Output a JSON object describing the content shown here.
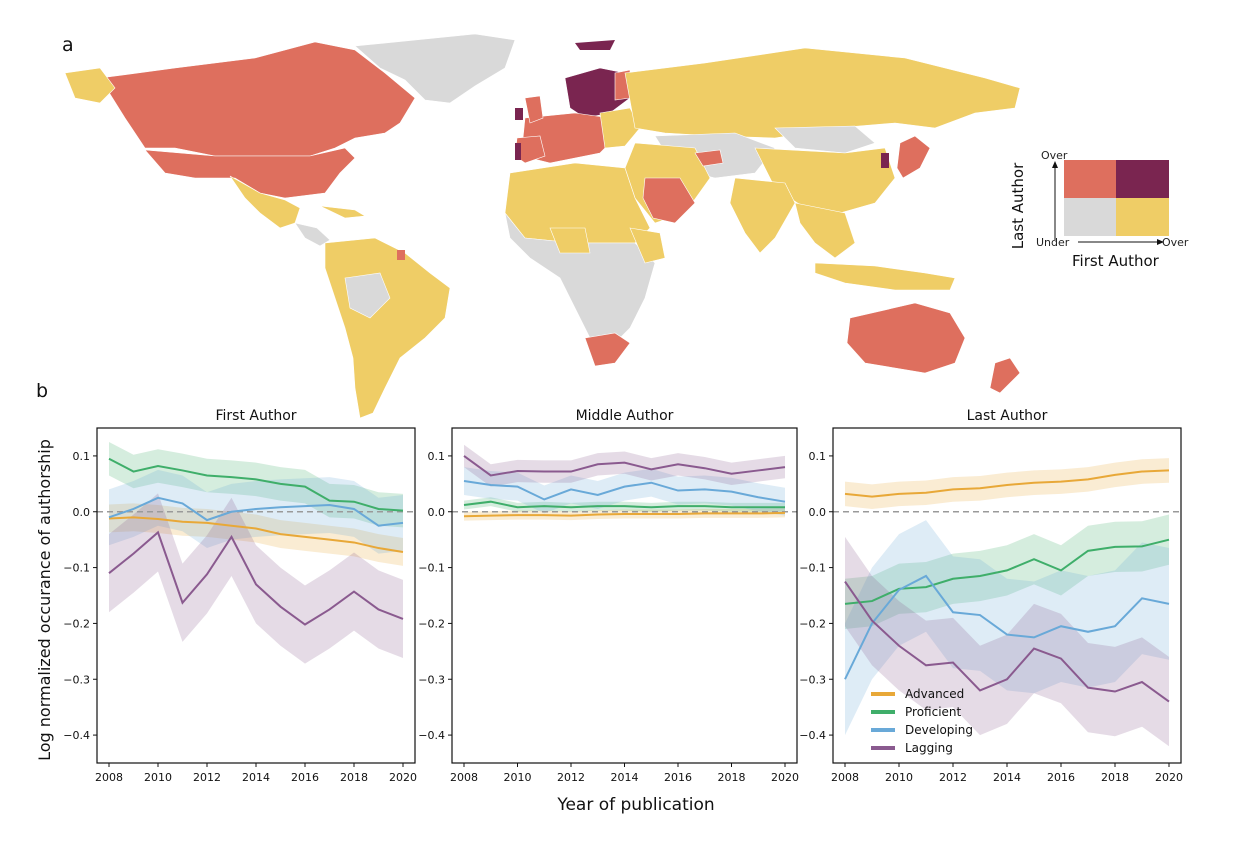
{
  "panels": {
    "a": "a",
    "b": "b"
  },
  "colors": {
    "advanced": "#e8a838",
    "proficient": "#3fae6a",
    "developing": "#69a9d8",
    "lagging": "#8a5a8f",
    "map_over_over": "#7a2550",
    "map_first_under_last_over": "#de6f5e",
    "map_first_over_last_under": "#efcd66",
    "map_under_under": "#d9d9d9"
  },
  "map_legend": {
    "y_axis_title": "Last Author",
    "x_axis_title": "First Author",
    "y_top": "Over",
    "origin": "Under",
    "x_right": "Over"
  },
  "chart_data": [
    {
      "type": "line",
      "title": "First Author",
      "x": [
        2008,
        2009,
        2010,
        2011,
        2012,
        2013,
        2014,
        2015,
        2016,
        2017,
        2018,
        2019,
        2020
      ],
      "xticks": [
        "2008",
        "2010",
        "2012",
        "2014",
        "2016",
        "2018",
        "2020"
      ],
      "yticks": [
        "0.1",
        "0.0",
        "−0.1",
        "−0.2",
        "−0.3",
        "−0.4"
      ],
      "ylim": [
        -0.45,
        0.15
      ],
      "series": [
        {
          "name": "Advanced",
          "values": [
            -0.012,
            -0.01,
            -0.013,
            -0.018,
            -0.02,
            -0.025,
            -0.03,
            -0.04,
            -0.045,
            -0.05,
            -0.055,
            -0.065,
            -0.072
          ],
          "band": 0.025
        },
        {
          "name": "Proficient",
          "values": [
            0.095,
            0.072,
            0.082,
            0.074,
            0.065,
            0.062,
            0.058,
            0.05,
            0.045,
            0.02,
            0.018,
            0.005,
            0.002
          ],
          "band": 0.03
        },
        {
          "name": "Developing",
          "values": [
            -0.01,
            0.005,
            0.025,
            0.015,
            -0.015,
            0.0,
            0.005,
            0.008,
            0.01,
            0.012,
            0.005,
            -0.025,
            -0.02
          ],
          "band": 0.05
        },
        {
          "name": "Lagging",
          "values": [
            -0.11,
            -0.075,
            -0.037,
            -0.163,
            -0.112,
            -0.045,
            -0.13,
            -0.17,
            -0.202,
            -0.175,
            -0.143,
            -0.175,
            -0.192
          ],
          "band": 0.07
        }
      ]
    },
    {
      "type": "line",
      "title": "Middle Author",
      "x": [
        2008,
        2009,
        2010,
        2011,
        2012,
        2013,
        2014,
        2015,
        2016,
        2017,
        2018,
        2019,
        2020
      ],
      "xticks": [
        "2008",
        "2010",
        "2012",
        "2014",
        "2016",
        "2018",
        "2020"
      ],
      "yticks": [
        "0.1",
        "0.0",
        "−0.1",
        "−0.2",
        "−0.3",
        "−0.4"
      ],
      "ylim": [
        -0.45,
        0.15
      ],
      "series": [
        {
          "name": "Advanced",
          "values": [
            -0.008,
            -0.007,
            -0.006,
            -0.006,
            -0.007,
            -0.005,
            -0.004,
            -0.004,
            -0.004,
            -0.003,
            -0.003,
            -0.003,
            -0.002
          ],
          "band": 0.008
        },
        {
          "name": "Proficient",
          "values": [
            0.012,
            0.018,
            0.008,
            0.01,
            0.008,
            0.01,
            0.01,
            0.008,
            0.01,
            0.01,
            0.008,
            0.008,
            0.008
          ],
          "band": 0.008
        },
        {
          "name": "Developing",
          "values": [
            0.055,
            0.048,
            0.045,
            0.022,
            0.04,
            0.03,
            0.045,
            0.052,
            0.038,
            0.04,
            0.036,
            0.026,
            0.018
          ],
          "band": 0.025
        },
        {
          "name": "Lagging",
          "values": [
            0.1,
            0.065,
            0.073,
            0.072,
            0.072,
            0.085,
            0.088,
            0.076,
            0.085,
            0.078,
            0.068,
            0.074,
            0.08
          ],
          "band": 0.02
        }
      ]
    },
    {
      "type": "line",
      "title": "Last Author",
      "x": [
        2008,
        2009,
        2010,
        2011,
        2012,
        2013,
        2014,
        2015,
        2016,
        2017,
        2018,
        2019,
        2020
      ],
      "xticks": [
        "2008",
        "2010",
        "2012",
        "2014",
        "2016",
        "2018",
        "2020"
      ],
      "yticks": [
        "0.1",
        "0.0",
        "−0.1",
        "−0.2",
        "−0.3",
        "−0.4"
      ],
      "ylim": [
        -0.45,
        0.15
      ],
      "series": [
        {
          "name": "Advanced",
          "values": [
            0.032,
            0.027,
            0.032,
            0.034,
            0.04,
            0.042,
            0.048,
            0.052,
            0.054,
            0.058,
            0.066,
            0.072,
            0.074
          ],
          "band": 0.022
        },
        {
          "name": "Proficient",
          "values": [
            -0.165,
            -0.16,
            -0.138,
            -0.135,
            -0.12,
            -0.115,
            -0.105,
            -0.085,
            -0.105,
            -0.07,
            -0.063,
            -0.062,
            -0.05
          ],
          "band": 0.045
        },
        {
          "name": "Developing",
          "values": [
            -0.3,
            -0.2,
            -0.14,
            -0.115,
            -0.18,
            -0.185,
            -0.22,
            -0.225,
            -0.205,
            -0.215,
            -0.205,
            -0.155,
            -0.165
          ],
          "band": 0.1
        },
        {
          "name": "Lagging",
          "values": [
            -0.125,
            -0.195,
            -0.24,
            -0.275,
            -0.27,
            -0.32,
            -0.3,
            -0.245,
            -0.263,
            -0.315,
            -0.322,
            -0.305,
            -0.34
          ],
          "band": 0.08
        }
      ]
    }
  ],
  "legend": [
    "Advanced",
    "Proficient",
    "Developing",
    "Lagging"
  ],
  "shared_ylabel": "Log normalized occurance of authorship",
  "shared_xlabel": "Year of publication"
}
